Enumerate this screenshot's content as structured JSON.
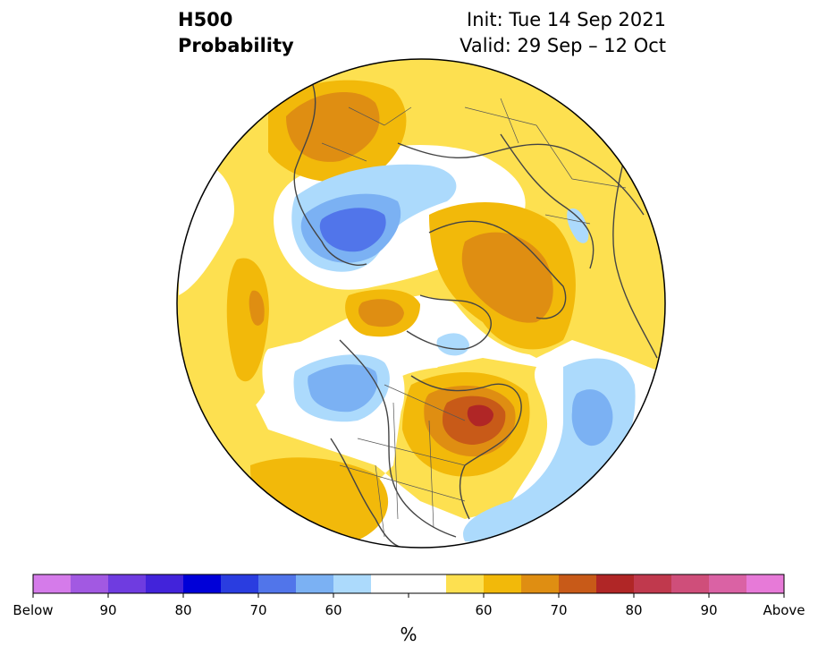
{
  "title": {
    "left_line1": "H500",
    "left_line2": "Probability",
    "right_line1": "Init: Tue 14 Sep 2021",
    "right_line2": "Valid: 29 Sep – 12 Oct"
  },
  "colorbar": {
    "unit": "%",
    "below_colors": [
      "#d57bea",
      "#a259e2",
      "#6f3ce0",
      "#4223da",
      "#0000d8",
      "#2a3de0",
      "#5175ea",
      "#7bb1f3",
      "#acdafc"
    ],
    "neutral_color": "#ffffff",
    "above_colors": [
      "#fde050",
      "#f2b90a",
      "#df8e12",
      "#c85a18",
      "#b02626",
      "#c0394d",
      "#cf4e7a",
      "#da62a4",
      "#e77ad8"
    ],
    "tick_labels": [
      "Below",
      "90",
      "80",
      "70",
      "60",
      "60",
      "70",
      "80",
      "90",
      "Above"
    ]
  },
  "map": {
    "projection": "north-polar-stereographic",
    "ocean_land_outline_color": "#444444",
    "anomalies": [
      {
        "region": "north-pacific-siberia",
        "sign": "above",
        "level": 70
      },
      {
        "region": "kamchatka",
        "sign": "below",
        "level": 70
      },
      {
        "region": "barents-scandinavia",
        "sign": "above",
        "level": 70
      },
      {
        "region": "arctic-central",
        "sign": "above",
        "level": 65
      },
      {
        "region": "alaska-gulf",
        "sign": "below",
        "level": 65
      },
      {
        "region": "hudson-bay-eastern-canada",
        "sign": "above",
        "level": 80
      },
      {
        "region": "north-atlantic",
        "sign": "below",
        "level": 65
      },
      {
        "region": "central-pacific",
        "sign": "above",
        "level": 65
      }
    ]
  }
}
